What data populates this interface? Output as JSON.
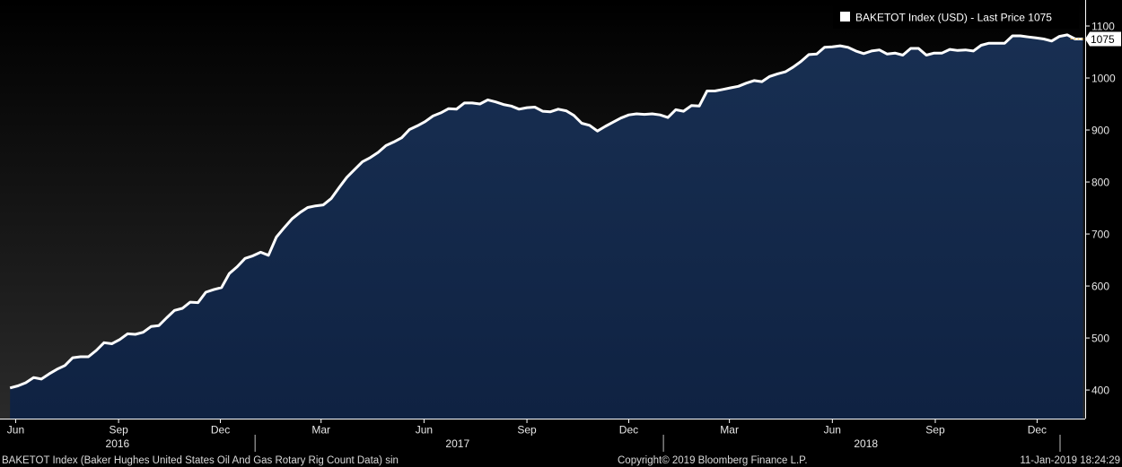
{
  "chart_data": {
    "type": "area",
    "legend": {
      "label": "BAKETOT Index (USD) - Last Price 1075",
      "position": "top-right"
    },
    "last_value_label": "1075",
    "series": [
      {
        "name": "BAKETOT Index (USD) - Last Price",
        "line_color": "#ffffff",
        "fill_color": "#13294b",
        "points": [
          [
            "2016-05-27",
            404
          ],
          [
            "2016-06-03",
            408
          ],
          [
            "2016-06-10",
            414
          ],
          [
            "2016-06-17",
            424
          ],
          [
            "2016-06-24",
            421
          ],
          [
            "2016-07-01",
            431
          ],
          [
            "2016-07-08",
            440
          ],
          [
            "2016-07-15",
            447
          ],
          [
            "2016-07-22",
            462
          ],
          [
            "2016-07-29",
            464
          ],
          [
            "2016-08-05",
            464
          ],
          [
            "2016-08-12",
            476
          ],
          [
            "2016-08-19",
            491
          ],
          [
            "2016-08-26",
            489
          ],
          [
            "2016-09-02",
            497
          ],
          [
            "2016-09-09",
            508
          ],
          [
            "2016-09-16",
            507
          ],
          [
            "2016-09-23",
            511
          ],
          [
            "2016-09-30",
            522
          ],
          [
            "2016-10-07",
            524
          ],
          [
            "2016-10-14",
            539
          ],
          [
            "2016-10-21",
            553
          ],
          [
            "2016-10-28",
            557
          ],
          [
            "2016-11-04",
            569
          ],
          [
            "2016-11-11",
            568
          ],
          [
            "2016-11-18",
            588
          ],
          [
            "2016-11-25",
            593
          ],
          [
            "2016-12-02",
            597
          ],
          [
            "2016-12-09",
            624
          ],
          [
            "2016-12-16",
            637
          ],
          [
            "2016-12-23",
            653
          ],
          [
            "2016-12-30",
            658
          ],
          [
            "2017-01-06",
            665
          ],
          [
            "2017-01-13",
            659
          ],
          [
            "2017-01-20",
            694
          ],
          [
            "2017-01-27",
            712
          ],
          [
            "2017-02-03",
            729
          ],
          [
            "2017-02-10",
            741
          ],
          [
            "2017-02-17",
            751
          ],
          [
            "2017-02-24",
            754
          ],
          [
            "2017-03-03",
            756
          ],
          [
            "2017-03-10",
            768
          ],
          [
            "2017-03-17",
            789
          ],
          [
            "2017-03-24",
            809
          ],
          [
            "2017-03-31",
            824
          ],
          [
            "2017-04-07",
            839
          ],
          [
            "2017-04-14",
            847
          ],
          [
            "2017-04-21",
            857
          ],
          [
            "2017-04-28",
            870
          ],
          [
            "2017-05-05",
            877
          ],
          [
            "2017-05-12",
            885
          ],
          [
            "2017-05-19",
            901
          ],
          [
            "2017-05-26",
            908
          ],
          [
            "2017-06-02",
            916
          ],
          [
            "2017-06-09",
            927
          ],
          [
            "2017-06-16",
            933
          ],
          [
            "2017-06-23",
            941
          ],
          [
            "2017-06-30",
            940
          ],
          [
            "2017-07-07",
            952
          ],
          [
            "2017-07-14",
            952
          ],
          [
            "2017-07-21",
            950
          ],
          [
            "2017-07-28",
            958
          ],
          [
            "2017-08-04",
            954
          ],
          [
            "2017-08-11",
            949
          ],
          [
            "2017-08-18",
            946
          ],
          [
            "2017-08-25",
            940
          ],
          [
            "2017-09-01",
            943
          ],
          [
            "2017-09-08",
            944
          ],
          [
            "2017-09-15",
            936
          ],
          [
            "2017-09-22",
            935
          ],
          [
            "2017-09-29",
            940
          ],
          [
            "2017-10-06",
            937
          ],
          [
            "2017-10-13",
            928
          ],
          [
            "2017-10-20",
            913
          ],
          [
            "2017-10-27",
            909
          ],
          [
            "2017-11-03",
            898
          ],
          [
            "2017-11-10",
            907
          ],
          [
            "2017-11-17",
            915
          ],
          [
            "2017-11-24",
            923
          ],
          [
            "2017-12-01",
            929
          ],
          [
            "2017-12-08",
            931
          ],
          [
            "2017-12-15",
            930
          ],
          [
            "2017-12-22",
            931
          ],
          [
            "2017-12-29",
            929
          ],
          [
            "2018-01-05",
            924
          ],
          [
            "2018-01-12",
            939
          ],
          [
            "2018-01-19",
            936
          ],
          [
            "2018-01-26",
            947
          ],
          [
            "2018-02-02",
            946
          ],
          [
            "2018-02-09",
            975
          ],
          [
            "2018-02-16",
            975
          ],
          [
            "2018-02-23",
            978
          ],
          [
            "2018-03-02",
            981
          ],
          [
            "2018-03-09",
            984
          ],
          [
            "2018-03-16",
            990
          ],
          [
            "2018-03-23",
            995
          ],
          [
            "2018-03-30",
            993
          ],
          [
            "2018-04-06",
            1003
          ],
          [
            "2018-04-13",
            1008
          ],
          [
            "2018-04-20",
            1012
          ],
          [
            "2018-04-27",
            1021
          ],
          [
            "2018-05-04",
            1032
          ],
          [
            "2018-05-11",
            1045
          ],
          [
            "2018-05-18",
            1046
          ],
          [
            "2018-05-25",
            1059
          ],
          [
            "2018-06-01",
            1060
          ],
          [
            "2018-06-08",
            1062
          ],
          [
            "2018-06-15",
            1059
          ],
          [
            "2018-06-22",
            1052
          ],
          [
            "2018-06-29",
            1047
          ],
          [
            "2018-07-06",
            1052
          ],
          [
            "2018-07-13",
            1054
          ],
          [
            "2018-07-20",
            1046
          ],
          [
            "2018-07-27",
            1048
          ],
          [
            "2018-08-03",
            1044
          ],
          [
            "2018-08-10",
            1057
          ],
          [
            "2018-08-17",
            1057
          ],
          [
            "2018-08-24",
            1044
          ],
          [
            "2018-08-31",
            1048
          ],
          [
            "2018-09-07",
            1048
          ],
          [
            "2018-09-14",
            1055
          ],
          [
            "2018-09-21",
            1053
          ],
          [
            "2018-09-28",
            1054
          ],
          [
            "2018-10-05",
            1052
          ],
          [
            "2018-10-12",
            1063
          ],
          [
            "2018-10-19",
            1067
          ],
          [
            "2018-10-26",
            1067
          ],
          [
            "2018-11-02",
            1067
          ],
          [
            "2018-11-09",
            1081
          ],
          [
            "2018-11-16",
            1081
          ],
          [
            "2018-11-23",
            1079
          ],
          [
            "2018-11-30",
            1077
          ],
          [
            "2018-12-07",
            1075
          ],
          [
            "2018-12-14",
            1071
          ],
          [
            "2018-12-21",
            1080
          ],
          [
            "2018-12-28",
            1083
          ],
          [
            "2019-01-04",
            1075
          ],
          [
            "2019-01-11",
            1075
          ]
        ]
      }
    ],
    "y_axis": {
      "position": "right",
      "ticks": [
        400,
        500,
        600,
        700,
        800,
        900,
        1000,
        1100
      ],
      "tick_labels": [
        "400",
        "500",
        "600",
        "700",
        "800",
        "900",
        "1000",
        "1100"
      ],
      "ylim": [
        345,
        1150
      ]
    },
    "x_axis": {
      "xlim": [
        "2016-05-18",
        "2019-01-13"
      ],
      "month_ticks": [
        {
          "date": "2016-06-01",
          "label": "Jun"
        },
        {
          "date": "2016-09-01",
          "label": "Sep"
        },
        {
          "date": "2016-12-01",
          "label": "Dec"
        },
        {
          "date": "2017-03-01",
          "label": "Mar"
        },
        {
          "date": "2017-06-01",
          "label": "Jun"
        },
        {
          "date": "2017-09-01",
          "label": "Sep"
        },
        {
          "date": "2017-12-01",
          "label": "Dec"
        },
        {
          "date": "2018-03-01",
          "label": "Mar"
        },
        {
          "date": "2018-06-01",
          "label": "Jun"
        },
        {
          "date": "2018-09-01",
          "label": "Sep"
        },
        {
          "date": "2018-12-01",
          "label": "Dec"
        }
      ],
      "year_labels": [
        {
          "date": "2016-08-31",
          "label": "2016"
        },
        {
          "date": "2017-07-01",
          "label": "2017"
        },
        {
          "date": "2018-07-01",
          "label": "2018"
        }
      ],
      "year_dividers": [
        "2017-01-01",
        "2018-01-01",
        "2019-01-01"
      ]
    },
    "grid": false
  },
  "footer": {
    "description": "BAKETOT Index (Baker Hughes United States Oil And Gas Rotary Rig Count Data) sin",
    "copyright": "Copyright© 2019 Bloomberg Finance L.P.",
    "timestamp": "11-Jan-2019 18:24:29"
  },
  "colors": {
    "background_top": "#000000",
    "background_bottom": "#262626",
    "area_fill": "#13294b",
    "line": "#ffffff",
    "last_price_marker": "#f5a623"
  }
}
